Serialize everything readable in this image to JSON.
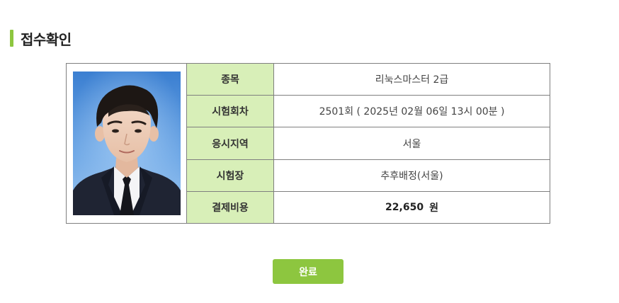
{
  "section": {
    "title": "접수확인"
  },
  "applicant": {
    "photo_icon": "applicant-portrait"
  },
  "rows": [
    {
      "label": "종목",
      "value": "리눅스마스터 2급"
    },
    {
      "label": "시험회차",
      "value": "2501회 ( 2025년 02월 06일 13시 00분 )"
    },
    {
      "label": "응시지역",
      "value": "서울"
    },
    {
      "label": "시험장",
      "value": "추후배정(서울)"
    },
    {
      "label": "결제비용",
      "value": "22,650",
      "unit": "원"
    }
  ],
  "actions": {
    "done_label": "완료"
  },
  "colors": {
    "accent": "#8dc63f",
    "label_bg": "#d8efb8",
    "border": "#7f7f7f"
  }
}
